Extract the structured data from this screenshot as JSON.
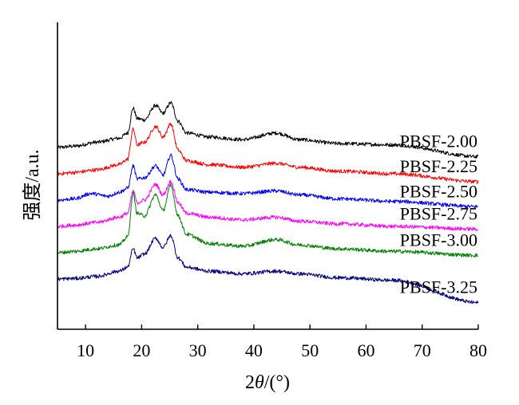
{
  "chart_data": {
    "type": "line",
    "title": "",
    "xlabel": "2θ/(°)",
    "xlabel_parts": [
      "2",
      "θ",
      "/(°)"
    ],
    "ylabel": "强度/a.u.",
    "xlim": [
      5,
      80
    ],
    "xticks": [
      10,
      20,
      30,
      40,
      50,
      60,
      70,
      80
    ],
    "yticks_shown": false,
    "grid": false,
    "legend": "inline labels at right end of each curve",
    "series": [
      {
        "name": "PBSF-2.00",
        "color": "#000000",
        "offset": 5.0,
        "profile": [
          [
            5,
            0.0
          ],
          [
            8,
            0.05
          ],
          [
            12,
            0.2
          ],
          [
            16,
            0.35
          ],
          [
            17.5,
            0.55
          ],
          [
            18.5,
            1.5
          ],
          [
            19.2,
            1.1
          ],
          [
            20.5,
            1.05
          ],
          [
            22.5,
            1.6
          ],
          [
            23.8,
            1.3
          ],
          [
            25.2,
            1.7
          ],
          [
            26.5,
            1.0
          ],
          [
            28,
            0.55
          ],
          [
            32,
            0.4
          ],
          [
            38,
            0.3
          ],
          [
            44,
            0.55
          ],
          [
            48,
            0.3
          ],
          [
            55,
            0.15
          ],
          [
            65,
            0.1
          ],
          [
            80,
            -0.35
          ]
        ]
      },
      {
        "name": "PBSF-2.25",
        "color": "#ff0000",
        "offset": 4.0,
        "profile": [
          [
            5,
            0.0
          ],
          [
            8,
            0.05
          ],
          [
            12,
            0.15
          ],
          [
            16,
            0.35
          ],
          [
            17.5,
            0.55
          ],
          [
            18.5,
            1.7
          ],
          [
            19.2,
            1.1
          ],
          [
            20.5,
            1.2
          ],
          [
            22.5,
            1.8
          ],
          [
            23.8,
            1.4
          ],
          [
            25.2,
            1.9
          ],
          [
            26.5,
            0.9
          ],
          [
            28,
            0.5
          ],
          [
            32,
            0.35
          ],
          [
            38,
            0.25
          ],
          [
            44,
            0.4
          ],
          [
            48,
            0.25
          ],
          [
            55,
            0.1
          ],
          [
            65,
            0.0
          ],
          [
            80,
            -0.3
          ]
        ]
      },
      {
        "name": "PBSF-2.50",
        "color": "#0000ff",
        "offset": 3.0,
        "profile": [
          [
            5,
            0.0
          ],
          [
            8,
            0.05
          ],
          [
            11,
            0.25
          ],
          [
            14,
            0.15
          ],
          [
            16,
            0.3
          ],
          [
            17.5,
            0.45
          ],
          [
            18.5,
            1.3
          ],
          [
            19.2,
            0.8
          ],
          [
            20.5,
            0.85
          ],
          [
            22.5,
            1.3
          ],
          [
            23.8,
            0.95
          ],
          [
            25.2,
            1.7
          ],
          [
            26.5,
            0.8
          ],
          [
            28,
            0.4
          ],
          [
            32,
            0.3
          ],
          [
            38,
            0.25
          ],
          [
            44,
            0.35
          ],
          [
            48,
            0.2
          ],
          [
            55,
            0.05
          ],
          [
            65,
            -0.05
          ],
          [
            80,
            -0.25
          ]
        ]
      },
      {
        "name": "PBSF-2.75",
        "color": "#ff00ff",
        "offset": 2.0,
        "profile": [
          [
            5,
            0.0
          ],
          [
            8,
            0.05
          ],
          [
            12,
            0.15
          ],
          [
            16,
            0.35
          ],
          [
            17.5,
            0.5
          ],
          [
            18.5,
            1.35
          ],
          [
            19.2,
            0.9
          ],
          [
            20.5,
            1.0
          ],
          [
            22.5,
            1.6
          ],
          [
            23.8,
            1.2
          ],
          [
            25.2,
            1.7
          ],
          [
            26.5,
            0.9
          ],
          [
            28,
            0.5
          ],
          [
            32,
            0.35
          ],
          [
            38,
            0.25
          ],
          [
            44,
            0.35
          ],
          [
            48,
            0.2
          ],
          [
            55,
            0.1
          ],
          [
            65,
            0.0
          ],
          [
            80,
            -0.1
          ]
        ]
      },
      {
        "name": "PBSF-3.00",
        "color": "#008000",
        "offset": 1.0,
        "profile": [
          [
            5,
            0.0
          ],
          [
            8,
            0.05
          ],
          [
            12,
            0.15
          ],
          [
            16,
            0.3
          ],
          [
            17.5,
            0.6
          ],
          [
            18.5,
            2.25
          ],
          [
            19.2,
            1.5
          ],
          [
            20.5,
            1.4
          ],
          [
            22.5,
            2.2
          ],
          [
            23.8,
            1.6
          ],
          [
            25.2,
            2.55
          ],
          [
            26.5,
            1.4
          ],
          [
            28,
            0.7
          ],
          [
            32,
            0.35
          ],
          [
            38,
            0.25
          ],
          [
            44,
            0.5
          ],
          [
            48,
            0.3
          ],
          [
            55,
            0.15
          ],
          [
            65,
            0.05
          ],
          [
            80,
            -0.1
          ]
        ]
      },
      {
        "name": "PBSF-3.25",
        "color": "#000080",
        "offset": 0.0,
        "profile": [
          [
            5,
            0.0
          ],
          [
            8,
            0.02
          ],
          [
            12,
            0.1
          ],
          [
            16,
            0.3
          ],
          [
            17.5,
            0.45
          ],
          [
            18.5,
            1.15
          ],
          [
            19.2,
            0.8
          ],
          [
            20.5,
            0.95
          ],
          [
            22.5,
            1.55
          ],
          [
            23.8,
            1.2
          ],
          [
            25.2,
            1.65
          ],
          [
            26.5,
            0.8
          ],
          [
            28,
            0.45
          ],
          [
            32,
            0.3
          ],
          [
            38,
            0.2
          ],
          [
            44,
            0.3
          ],
          [
            48,
            0.2
          ],
          [
            55,
            0.05
          ],
          [
            65,
            -0.05
          ],
          [
            80,
            -0.9
          ]
        ]
      }
    ]
  }
}
